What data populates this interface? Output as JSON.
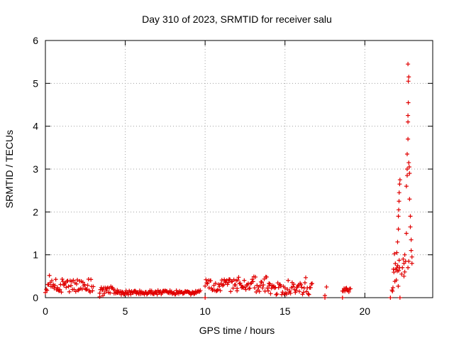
{
  "chart_data": {
    "type": "scatter",
    "title": "Day 310 of 2023, SRMTID for receiver salu",
    "xlabel": "GPS time / hours",
    "ylabel": "SRMTID / TECUs",
    "xlim": [
      0,
      24.25
    ],
    "ylim": [
      0,
      6
    ],
    "x_ticks": [
      0,
      5,
      10,
      15,
      20
    ],
    "y_ticks": [
      0,
      1,
      2,
      3,
      4,
      5,
      6
    ],
    "grid": true,
    "marker": "+",
    "marker_color": "#e00000",
    "segments": [
      {
        "start": 0.0,
        "end": 3.0,
        "step": 0.05,
        "base": 0.28,
        "spread": 0.32
      },
      {
        "start": 3.4,
        "end": 4.5,
        "step": 0.05,
        "base": 0.17,
        "spread": 0.14
      },
      {
        "start": 4.5,
        "end": 9.7,
        "step": 0.05,
        "base": 0.12,
        "spread": 0.1
      },
      {
        "start": 10.0,
        "end": 12.0,
        "step": 0.05,
        "base": 0.28,
        "spread": 0.3
      },
      {
        "start": 12.0,
        "end": 14.0,
        "step": 0.05,
        "base": 0.32,
        "spread": 0.38
      },
      {
        "start": 14.0,
        "end": 16.7,
        "step": 0.05,
        "base": 0.22,
        "spread": 0.3
      },
      {
        "start": 18.6,
        "end": 19.1,
        "step": 0.05,
        "base": 0.18,
        "spread": 0.1
      },
      {
        "start": 21.7,
        "end": 22.2,
        "step": 0.03,
        "base": 0.45,
        "spread": 0.7
      }
    ],
    "points": [
      {
        "x": 3.4,
        "y": 0.02
      },
      {
        "x": 3.6,
        "y": 0.05
      },
      {
        "x": 10.0,
        "y": 0.0
      },
      {
        "x": 17.5,
        "y": 0.0
      },
      {
        "x": 17.5,
        "y": 0.05
      },
      {
        "x": 17.6,
        "y": 0.25
      },
      {
        "x": 18.6,
        "y": 0.0
      },
      {
        "x": 21.6,
        "y": 0.0
      },
      {
        "x": 22.2,
        "y": 0.0
      },
      {
        "x": 22.0,
        "y": 1.05
      },
      {
        "x": 22.05,
        "y": 1.3
      },
      {
        "x": 22.1,
        "y": 1.6
      },
      {
        "x": 22.1,
        "y": 1.9
      },
      {
        "x": 22.12,
        "y": 2.05
      },
      {
        "x": 22.14,
        "y": 2.25
      },
      {
        "x": 22.15,
        "y": 2.45
      },
      {
        "x": 22.18,
        "y": 2.65
      },
      {
        "x": 22.2,
        "y": 2.75
      },
      {
        "x": 22.3,
        "y": 0.55
      },
      {
        "x": 22.35,
        "y": 0.7
      },
      {
        "x": 22.4,
        "y": 0.9
      },
      {
        "x": 22.45,
        "y": 0.8
      },
      {
        "x": 22.5,
        "y": 1.0
      },
      {
        "x": 22.55,
        "y": 0.85
      },
      {
        "x": 22.6,
        "y": 1.5
      },
      {
        "x": 22.6,
        "y": 2.6
      },
      {
        "x": 22.65,
        "y": 2.85
      },
      {
        "x": 22.65,
        "y": 3.0
      },
      {
        "x": 22.65,
        "y": 3.35
      },
      {
        "x": 22.7,
        "y": 3.7
      },
      {
        "x": 22.7,
        "y": 4.1
      },
      {
        "x": 22.7,
        "y": 4.25
      },
      {
        "x": 22.72,
        "y": 4.55
      },
      {
        "x": 22.72,
        "y": 5.05
      },
      {
        "x": 22.75,
        "y": 5.15
      },
      {
        "x": 22.7,
        "y": 5.45
      },
      {
        "x": 22.75,
        "y": 3.15
      },
      {
        "x": 22.78,
        "y": 3.05
      },
      {
        "x": 22.8,
        "y": 2.9
      },
      {
        "x": 22.8,
        "y": 2.3
      },
      {
        "x": 22.85,
        "y": 1.9
      },
      {
        "x": 22.85,
        "y": 1.65
      },
      {
        "x": 22.9,
        "y": 1.35
      },
      {
        "x": 22.9,
        "y": 1.1
      },
      {
        "x": 22.95,
        "y": 0.8
      },
      {
        "x": 22.95,
        "y": 0.95
      },
      {
        "x": 22.7,
        "y": 0.7
      },
      {
        "x": 22.75,
        "y": 0.85
      },
      {
        "x": 22.5,
        "y": 0.6
      },
      {
        "x": 22.45,
        "y": 0.5
      }
    ]
  }
}
